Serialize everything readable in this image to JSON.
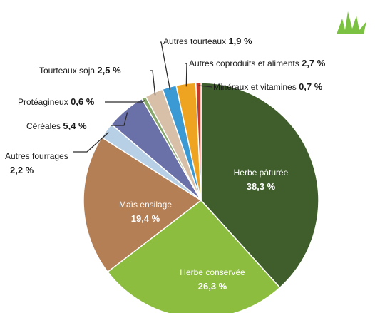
{
  "chart_data": {
    "type": "pie",
    "slices": [
      {
        "name": "Herbe pâturée",
        "value": 38.3,
        "label": "38,3 %",
        "color": "#3f5e2c"
      },
      {
        "name": "Herbe conservée",
        "value": 26.3,
        "label": "26,3 %",
        "color": "#8cbd3f"
      },
      {
        "name": "Maïs ensilage",
        "value": 19.4,
        "label": "19,4 %",
        "color": "#b57f56"
      },
      {
        "name": "Autres fourrages",
        "value": 2.2,
        "label": "2,2 %",
        "color": "#b8d0e6"
      },
      {
        "name": "Céréales",
        "value": 5.4,
        "label": "5,4 %",
        "color": "#6a70a8"
      },
      {
        "name": "Protéagineux",
        "value": 0.6,
        "label": "0,6 %",
        "color": "#86a86c"
      },
      {
        "name": "Tourteaux soja",
        "value": 2.5,
        "label": "2,5 %",
        "color": "#d7bfa8"
      },
      {
        "name": "Autres tourteaux",
        "value": 1.9,
        "label": "1,9 %",
        "color": "#3b9ad4"
      },
      {
        "name": "Autres coproduits et aliments",
        "value": 2.7,
        "label": "2,7 %",
        "color": "#eea421"
      },
      {
        "name": "Minéraux et vitamines",
        "value": 0.7,
        "label": "0,7 %",
        "color": "#c63a2a"
      }
    ],
    "start_angle_deg": 0,
    "direction": "clockwise"
  },
  "logo": {
    "name": "grass-logo-icon",
    "color": "#7cc242"
  }
}
